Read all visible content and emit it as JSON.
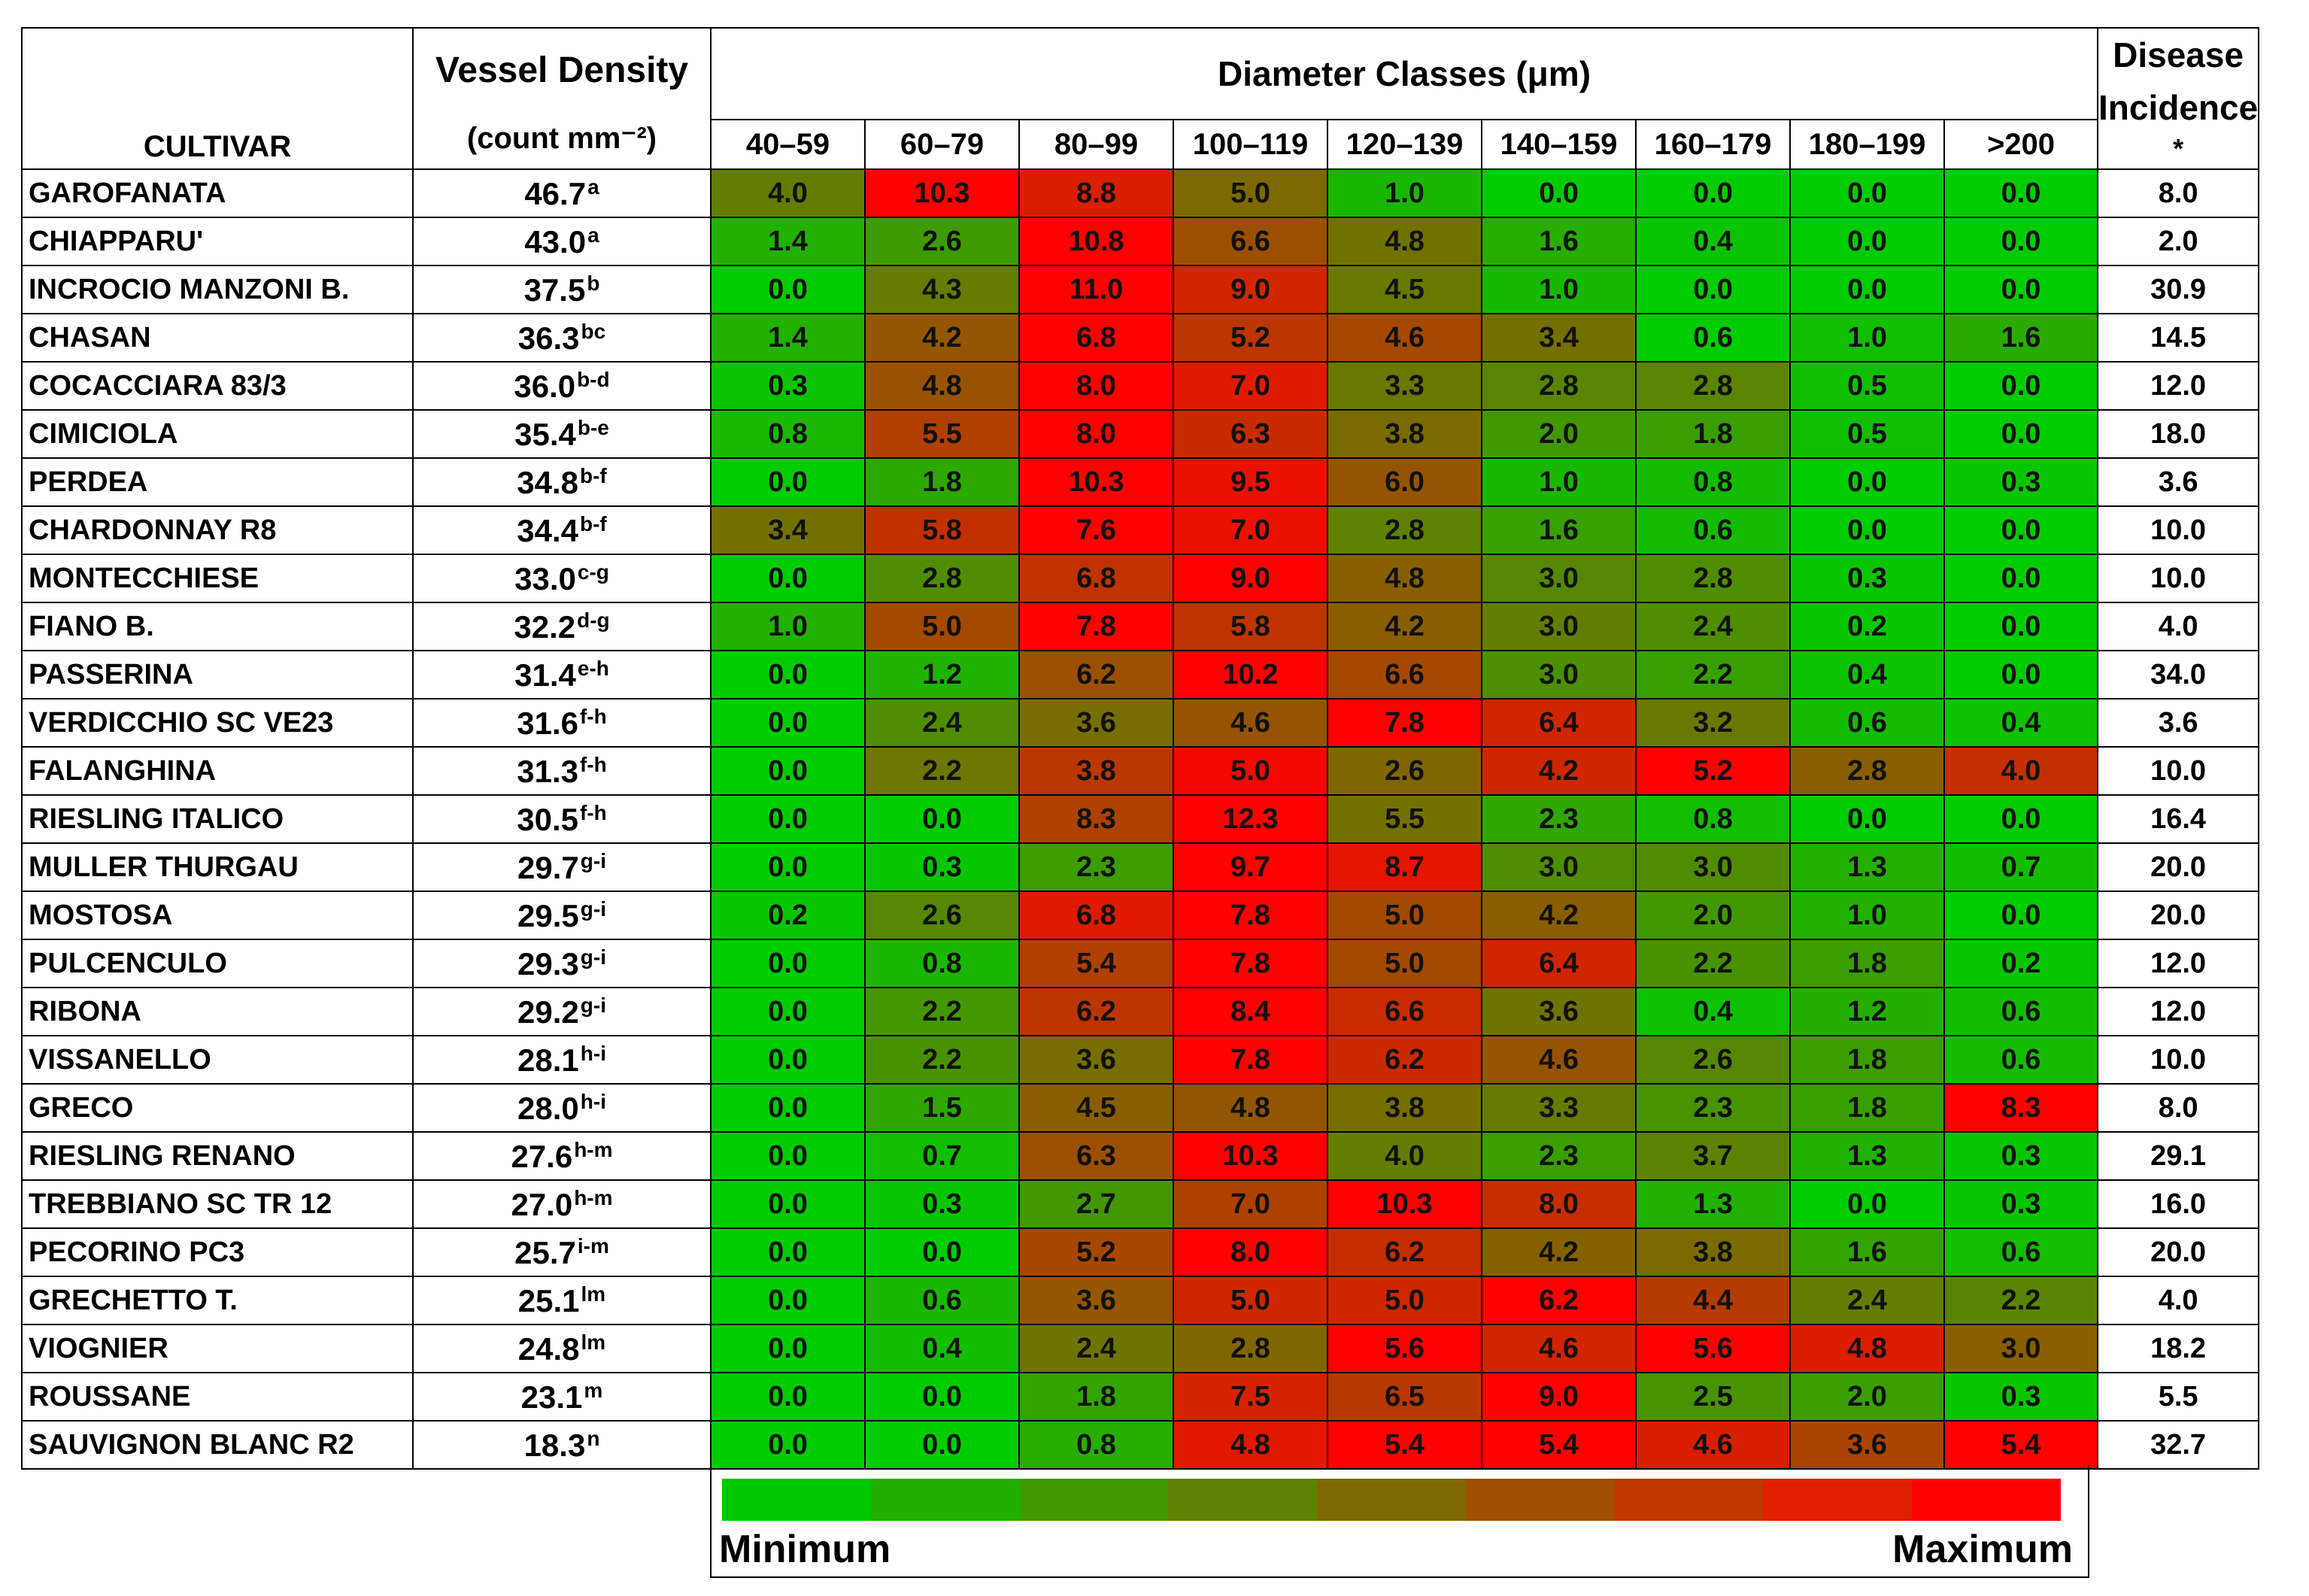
{
  "chart_data": {
    "type": "heatmap",
    "headers": {
      "cultivar": "CULTIVAR",
      "vessel_density_line1": "Vessel Density",
      "vessel_density_line2": "(count mm⁻²)",
      "diameter_classes": "Diameter Classes (μm)",
      "disease_line1": "Disease",
      "disease_line2": "Incidence",
      "disease_mark": "*"
    },
    "classes": [
      "40–59",
      "60–79",
      "80–99",
      "100–119",
      "120–139",
      "140–159",
      "160–179",
      "180–199",
      ">200"
    ],
    "color_scale": {
      "min_color": "#00cc00",
      "max_color": "#ff0000",
      "scope": "row"
    },
    "legend": {
      "min_label": "Minimum",
      "max_label": "Maximum",
      "colors": [
        "#00c800",
        "#20b000",
        "#409800",
        "#608000",
        "#806800",
        "#a05000",
        "#c03800",
        "#e02000",
        "#ff0000"
      ]
    },
    "rows": [
      {
        "cultivar": "GAROFANATA",
        "density": "46.7",
        "letter": "a",
        "values": [
          4.0,
          10.3,
          8.8,
          5.0,
          1.0,
          0.0,
          0.0,
          0.0,
          0.0
        ],
        "disease": "8.0"
      },
      {
        "cultivar": "CHIAPPARU'",
        "density": "43.0",
        "letter": "a",
        "values": [
          1.4,
          2.6,
          10.8,
          6.6,
          4.8,
          1.6,
          0.4,
          0.0,
          0.0
        ],
        "disease": "2.0"
      },
      {
        "cultivar": "INCROCIO MANZONI B.",
        "density": "37.5",
        "letter": "b",
        "values": [
          0.0,
          4.3,
          11.0,
          9.0,
          4.5,
          1.0,
          0.0,
          0.0,
          0.0
        ],
        "disease": "30.9"
      },
      {
        "cultivar": "CHASAN",
        "density": "36.3",
        "letter": "bc",
        "values": [
          1.4,
          4.2,
          6.8,
          5.2,
          4.6,
          3.4,
          0.6,
          1.0,
          1.6
        ],
        "disease": "14.5"
      },
      {
        "cultivar": "COCACCIARA 83/3",
        "density": "36.0",
        "letter": "b-d",
        "values": [
          0.3,
          4.8,
          8.0,
          7.0,
          3.3,
          2.8,
          2.8,
          0.5,
          0.0
        ],
        "disease": "12.0"
      },
      {
        "cultivar": "CIMICIOLA",
        "density": "35.4",
        "letter": "b-e",
        "values": [
          0.8,
          5.5,
          8.0,
          6.3,
          3.8,
          2.0,
          1.8,
          0.5,
          0.0
        ],
        "disease": "18.0"
      },
      {
        "cultivar": "PERDEA",
        "density": "34.8",
        "letter": "b-f",
        "values": [
          0.0,
          1.8,
          10.3,
          9.5,
          6.0,
          1.0,
          0.8,
          0.0,
          0.3
        ],
        "disease": "3.6"
      },
      {
        "cultivar": "CHARDONNAY R8",
        "density": "34.4",
        "letter": "b-f",
        "values": [
          3.4,
          5.8,
          7.6,
          7.0,
          2.8,
          1.6,
          0.6,
          0.0,
          0.0
        ],
        "disease": "10.0"
      },
      {
        "cultivar": "MONTECCHIESE",
        "density": "33.0",
        "letter": "c-g",
        "values": [
          0.0,
          2.8,
          6.8,
          9.0,
          4.8,
          3.0,
          2.8,
          0.3,
          0.0
        ],
        "disease": "10.0"
      },
      {
        "cultivar": "FIANO B.",
        "density": "32.2",
        "letter": "d-g",
        "values": [
          1.0,
          5.0,
          7.8,
          5.8,
          4.2,
          3.0,
          2.4,
          0.2,
          0.0
        ],
        "disease": "4.0"
      },
      {
        "cultivar": "PASSERINA",
        "density": "31.4",
        "letter": "e-h",
        "values": [
          0.0,
          1.2,
          6.2,
          10.2,
          6.6,
          3.0,
          2.2,
          0.4,
          0.0
        ],
        "disease": "34.0"
      },
      {
        "cultivar": "VERDICCHIO SC VE23",
        "density": "31.6",
        "letter": "f-h",
        "values": [
          0.0,
          2.4,
          3.6,
          4.6,
          7.8,
          6.4,
          3.2,
          0.6,
          0.4
        ],
        "disease": "3.6"
      },
      {
        "cultivar": "FALANGHINA",
        "density": "31.3",
        "letter": "f-h",
        "values": [
          0.0,
          2.2,
          3.8,
          5.0,
          2.6,
          4.2,
          5.2,
          2.8,
          4.0
        ],
        "disease": "10.0"
      },
      {
        "cultivar": "RIESLING ITALICO",
        "density": "30.5",
        "letter": "f-h",
        "values": [
          0.0,
          0.0,
          8.3,
          12.3,
          5.5,
          2.3,
          0.8,
          0.0,
          0.0
        ],
        "disease": "16.4"
      },
      {
        "cultivar": "MULLER THURGAU",
        "density": "29.7",
        "letter": "g-i",
        "values": [
          0.0,
          0.3,
          2.3,
          9.7,
          8.7,
          3.0,
          3.0,
          1.3,
          0.7
        ],
        "disease": "20.0"
      },
      {
        "cultivar": "MOSTOSA",
        "density": "29.5",
        "letter": "g-i",
        "values": [
          0.2,
          2.6,
          6.8,
          7.8,
          5.0,
          4.2,
          2.0,
          1.0,
          0.0
        ],
        "disease": "20.0"
      },
      {
        "cultivar": "PULCENCULO",
        "density": "29.3",
        "letter": "g-i",
        "values": [
          0.0,
          0.8,
          5.4,
          7.8,
          5.0,
          6.4,
          2.2,
          1.8,
          0.2
        ],
        "disease": "12.0"
      },
      {
        "cultivar": "RIBONA",
        "density": "29.2",
        "letter": "g-i",
        "values": [
          0.0,
          2.2,
          6.2,
          8.4,
          6.6,
          3.6,
          0.4,
          1.2,
          0.6
        ],
        "disease": "12.0"
      },
      {
        "cultivar": "VISSANELLO",
        "density": "28.1",
        "letter": "h-i",
        "values": [
          0.0,
          2.2,
          3.6,
          7.8,
          6.2,
          4.6,
          2.6,
          1.8,
          0.6
        ],
        "disease": "10.0"
      },
      {
        "cultivar": "GRECO",
        "density": "28.0",
        "letter": "h-i",
        "values": [
          0.0,
          1.5,
          4.5,
          4.8,
          3.8,
          3.3,
          2.3,
          1.8,
          8.3
        ],
        "disease": "8.0"
      },
      {
        "cultivar": "RIESLING RENANO",
        "density": "27.6",
        "letter": "h-m",
        "values": [
          0.0,
          0.7,
          6.3,
          10.3,
          4.0,
          2.3,
          3.7,
          1.3,
          0.3
        ],
        "disease": "29.1"
      },
      {
        "cultivar": "TREBBIANO SC TR 12",
        "density": "27.0",
        "letter": "h-m",
        "values": [
          0.0,
          0.3,
          2.7,
          7.0,
          10.3,
          8.0,
          1.3,
          0.0,
          0.3
        ],
        "disease": "16.0"
      },
      {
        "cultivar": "PECORINO PC3",
        "density": "25.7",
        "letter": "i-m",
        "values": [
          0.0,
          0.0,
          5.2,
          8.0,
          6.2,
          4.2,
          3.8,
          1.6,
          0.6
        ],
        "disease": "20.0"
      },
      {
        "cultivar": "GRECHETTO T.",
        "density": "25.1",
        "letter": "lm",
        "values": [
          0.0,
          0.6,
          3.6,
          5.0,
          5.0,
          6.2,
          4.4,
          2.4,
          2.2
        ],
        "disease": "4.0"
      },
      {
        "cultivar": "VIOGNIER",
        "density": "24.8",
        "letter": "lm",
        "values": [
          0.0,
          0.4,
          2.4,
          2.8,
          5.6,
          4.6,
          5.6,
          4.8,
          3.0
        ],
        "disease": "18.2"
      },
      {
        "cultivar": "ROUSSANE",
        "density": "23.1",
        "letter": "m",
        "values": [
          0.0,
          0.0,
          1.8,
          7.5,
          6.5,
          9.0,
          2.5,
          2.0,
          0.3
        ],
        "disease": "5.5"
      },
      {
        "cultivar": "SAUVIGNON BLANC R2",
        "density": "18.3",
        "letter": "n",
        "values": [
          0.0,
          0.0,
          0.8,
          4.8,
          5.4,
          5.4,
          4.6,
          3.6,
          5.4
        ],
        "disease": "32.7"
      }
    ]
  }
}
